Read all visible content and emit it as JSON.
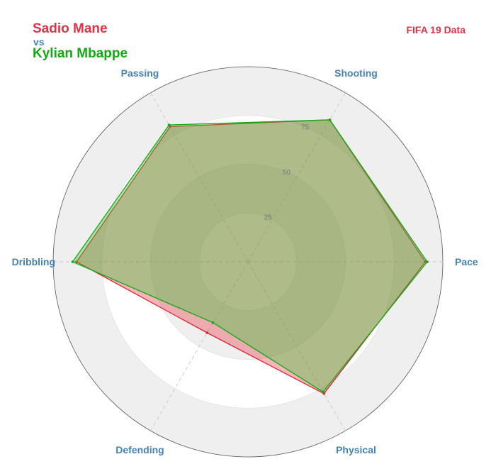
{
  "title": {
    "player1": "Sadio Mane",
    "vs": "vs",
    "player2": "Kylian Mbappe"
  },
  "source_label": "FIFA 19 Data",
  "colors": {
    "player1": "#dd3344",
    "vs": "#4682b4",
    "player2": "#11aa11",
    "axis_label": "#4682b4",
    "tick_label": "#777777",
    "source": "#dd3344"
  },
  "chart_data": {
    "type": "radar",
    "categories": [
      "Pace",
      "Shooting",
      "Passing",
      "Dribbling",
      "Defending",
      "Physical"
    ],
    "rlim": [
      0,
      100
    ],
    "ticks": [
      25,
      50,
      75
    ],
    "series": [
      {
        "name": "Sadio Mane",
        "values": [
          91,
          84,
          80,
          88,
          42,
          78
        ]
      },
      {
        "name": "Kylian Mbappe",
        "values": [
          92,
          84,
          81,
          90,
          36,
          77
        ]
      }
    ]
  }
}
